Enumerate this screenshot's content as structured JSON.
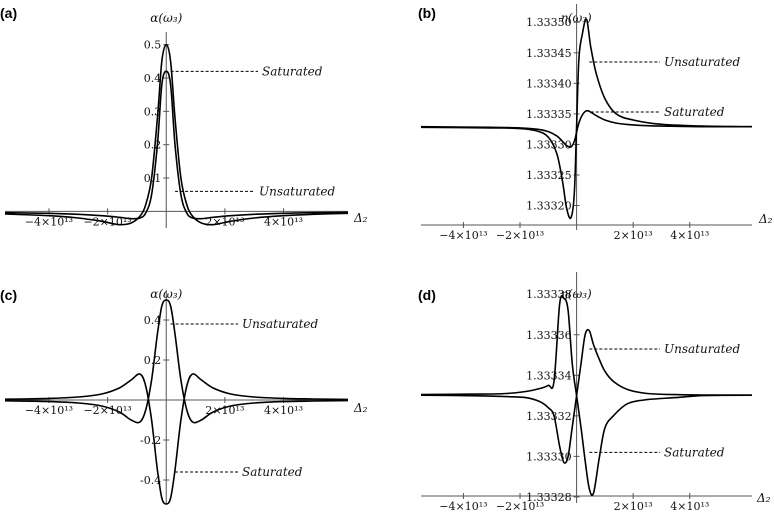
{
  "chart_data": [
    {
      "panel": "(a)",
      "type": "line",
      "ylabel": "α(ω₃)",
      "xlabel": "Δ₂",
      "xlim": [
        -55000000000000,
        62000000000000
      ],
      "ylim": [
        -0.05,
        0.52
      ],
      "yticks": [
        0.1,
        0.2,
        0.3,
        0.4,
        0.5
      ],
      "xticks": [
        -40000000000000,
        -20000000000000,
        20000000000000,
        40000000000000
      ],
      "xtick_labels": [
        "−4×10¹³",
        "−2×10¹³",
        "2×10¹³",
        "4×10¹³"
      ],
      "series": [
        {
          "x": [
            -55000000000000.0,
            -40000000000000.0,
            -30000000000000.0,
            -22000000000000.0,
            -16000000000000.0,
            -12000000000000.0,
            -9000000000000.0,
            -7000000000000.0,
            -5000000000000.0,
            -3000000000000.0,
            -1500000000000.0,
            0,
            1500000000000.0,
            3000000000000.0,
            5000000000000.0,
            7000000000000.0,
            9000000000000.0,
            12000000000000.0,
            16000000000000.0,
            22000000000000.0,
            30000000000000.0,
            40000000000000.0,
            50000000000000.0,
            62000000000000.0
          ],
          "y": [
            -0.004,
            -0.006,
            -0.009,
            -0.013,
            -0.018,
            -0.022,
            -0.02,
            -0.005,
            0.05,
            0.2,
            0.38,
            0.42,
            0.38,
            0.2,
            0.05,
            -0.005,
            -0.02,
            -0.022,
            -0.018,
            -0.013,
            -0.009,
            -0.006,
            -0.004,
            -0.003
          ]
        },
        {
          "x": [
            -55000000000000.0,
            -40000000000000.0,
            -30000000000000.0,
            -22000000000000.0,
            -16000000000000.0,
            -12000000000000.0,
            -9000000000000.0,
            -7000000000000.0,
            -5000000000000.0,
            -3000000000000.0,
            -1500000000000.0,
            0,
            1500000000000.0,
            3000000000000.0,
            5000000000000.0,
            7000000000000.0,
            9000000000000.0,
            12000000000000.0,
            16000000000000.0,
            22000000000000.0,
            30000000000000.0,
            40000000000000.0,
            50000000000000.0,
            62000000000000.0
          ],
          "y": [
            -0.008,
            -0.013,
            -0.02,
            -0.03,
            -0.04,
            -0.035,
            -0.015,
            0.02,
            0.1,
            0.28,
            0.45,
            0.5,
            0.45,
            0.28,
            0.1,
            0.02,
            -0.015,
            -0.035,
            -0.04,
            -0.03,
            -0.02,
            -0.013,
            -0.009,
            -0.006
          ]
        }
      ],
      "annotations": [
        {
          "text": "Saturated",
          "x": 1500000000000.0,
          "y": 0.42
        },
        {
          "text": "Unsaturated",
          "x": 3000000000000.0,
          "y": 0.06
        }
      ]
    },
    {
      "panel": "(b)",
      "type": "line",
      "ylabel": "η(ω₃)",
      "xlabel": "Δ₂",
      "xlim": [
        -55000000000000,
        62000000000000
      ],
      "ylim": [
        1.33316,
        1.33352
      ],
      "yticks": [
        1.3332,
        1.33325,
        1.3333,
        1.33335,
        1.3334,
        1.33345,
        1.3335
      ],
      "ytick_labels": [
        "1.33320",
        "1.33325",
        "1.33330",
        "1.33335",
        "1.33340",
        "1.33345",
        "1.33350"
      ],
      "xticks": [
        -40000000000000,
        -20000000000000,
        20000000000000,
        40000000000000
      ],
      "xtick_labels": [
        "−4×10¹³",
        "−2×10¹³",
        "2×10¹³",
        "4×10¹³"
      ],
      "series": [
        {
          "x": [
            -55000000000000.0,
            -30000000000000.0,
            -20000000000000.0,
            -14000000000000.0,
            -10000000000000.0,
            -7000000000000.0,
            -5000000000000.0,
            -3500000000000.0,
            -2000000000000.0,
            -800000000000.0,
            0,
            800000000000.0,
            2000000000000.0,
            3500000000000.0,
            5000000000000.0,
            7000000000000.0,
            10000000000000.0,
            14000000000000.0,
            20000000000000.0,
            30000000000000.0,
            45000000000000.0,
            62000000000000.0
          ],
          "y": [
            1.333328,
            1.333327,
            1.333326,
            1.333322,
            1.333312,
            1.333285,
            1.33324,
            1.333195,
            1.33318,
            1.33322,
            1.33333,
            1.33344,
            1.33348,
            1.333505,
            1.33346,
            1.333415,
            1.333375,
            1.33335,
            1.33334,
            1.333333,
            1.33333,
            1.333329
          ]
        },
        {
          "x": [
            -55000000000000.0,
            -30000000000000.0,
            -20000000000000.0,
            -14000000000000.0,
            -10000000000000.0,
            -7000000000000.0,
            -5000000000000.0,
            -3500000000000.0,
            -2000000000000.0,
            -800000000000.0,
            0,
            800000000000.0,
            2000000000000.0,
            3500000000000.0,
            5000000000000.0,
            7000000000000.0,
            10000000000000.0,
            14000000000000.0,
            20000000000000.0,
            30000000000000.0,
            45000000000000.0,
            62000000000000.0
          ],
          "y": [
            1.333329,
            1.333328,
            1.333327,
            1.333325,
            1.333321,
            1.333314,
            1.333305,
            1.333298,
            1.333296,
            1.333305,
            1.33332,
            1.333335,
            1.333348,
            1.333355,
            1.333353,
            1.333347,
            1.33334,
            1.333335,
            1.333332,
            1.33333,
            1.333329,
            1.333329
          ]
        }
      ],
      "annotations": [
        {
          "text": "Unsaturated",
          "x": 4500000000000.0,
          "y": 1.333435
        },
        {
          "text": "Saturated",
          "x": 5000000000000.0,
          "y": 1.333353
        }
      ]
    },
    {
      "panel": "(c)",
      "type": "line",
      "ylabel": "α(ω₃)",
      "xlabel": "Δ₂",
      "xlim": [
        -55000000000000,
        62000000000000
      ],
      "ylim": [
        -0.52,
        0.52
      ],
      "yticks": [
        -0.4,
        -0.2,
        0.2,
        0.4
      ],
      "xticks": [
        -40000000000000,
        -20000000000000,
        20000000000000,
        40000000000000
      ],
      "xtick_labels": [
        "−4×10¹³",
        "−2×10¹³",
        "2×10¹³",
        "4×10¹³"
      ],
      "series": [
        {
          "x": [
            -55000000000000.0,
            -40000000000000.0,
            -30000000000000.0,
            -22000000000000.0,
            -16000000000000.0,
            -12000000000000.0,
            -9000000000000.0,
            -7000000000000.0,
            -5000000000000.0,
            -3000000000000.0,
            -1500000000000.0,
            0,
            1500000000000.0,
            3000000000000.0,
            5000000000000.0,
            7000000000000.0,
            9000000000000.0,
            12000000000000.0,
            16000000000000.0,
            22000000000000.0,
            30000000000000.0,
            40000000000000.0,
            50000000000000.0,
            62000000000000.0
          ],
          "y": [
            -0.004,
            -0.008,
            -0.015,
            -0.03,
            -0.06,
            -0.1,
            -0.11,
            -0.05,
            0.1,
            0.33,
            0.47,
            0.5,
            0.47,
            0.33,
            0.1,
            -0.05,
            -0.11,
            -0.1,
            -0.06,
            -0.03,
            -0.015,
            -0.008,
            -0.005,
            -0.003
          ]
        },
        {
          "x": [
            -55000000000000.0,
            -40000000000000.0,
            -30000000000000.0,
            -22000000000000.0,
            -16000000000000.0,
            -12000000000000.0,
            -9000000000000.0,
            -7000000000000.0,
            -5000000000000.0,
            -3000000000000.0,
            -1500000000000.0,
            0,
            1500000000000.0,
            3000000000000.0,
            5000000000000.0,
            7000000000000.0,
            9000000000000.0,
            12000000000000.0,
            16000000000000.0,
            22000000000000.0,
            30000000000000.0,
            40000000000000.0,
            50000000000000.0,
            62000000000000.0
          ],
          "y": [
            0.004,
            0.008,
            0.015,
            0.03,
            0.06,
            0.1,
            0.13,
            0.07,
            -0.1,
            -0.35,
            -0.49,
            -0.52,
            -0.49,
            -0.35,
            -0.1,
            0.07,
            0.13,
            0.1,
            0.06,
            0.03,
            0.015,
            0.008,
            0.005,
            0.003
          ]
        }
      ],
      "annotations": [
        {
          "text": "Unsaturated",
          "x": 1500000000000.0,
          "y": 0.38
        },
        {
          "text": "Saturated",
          "x": 3000000000000.0,
          "y": -0.36
        }
      ]
    },
    {
      "panel": "(d)",
      "type": "line",
      "ylabel": "η(ω₃)",
      "xlabel": "Δ₂",
      "xlim": [
        -55000000000000,
        62000000000000
      ],
      "ylim": [
        1.333277,
        1.333388
      ],
      "yticks": [
        1.33328,
        1.3333,
        1.33332,
        1.33334,
        1.33336,
        1.33338
      ],
      "ytick_labels": [
        "1.33328",
        "1.33330",
        "1.33332",
        "1.33334",
        "1.33336",
        "1.33338"
      ],
      "xticks": [
        -40000000000000,
        -20000000000000,
        20000000000000,
        40000000000000
      ],
      "xtick_labels": [
        "−4×10¹³",
        "−2×10¹³",
        "2×10¹³",
        "4×10¹³"
      ],
      "series": [
        {
          "x": [
            -55000000000000.0,
            -35000000000000.0,
            -25000000000000.0,
            -18000000000000.0,
            -13000000000000.0,
            -10000000000000.0,
            -8000000000000.0,
            -6000000000000.0,
            -4500000000000.0,
            -3000000000000.0,
            -1500000000000.0,
            0,
            1500000000000.0,
            3000000000000.0,
            4500000000000.0,
            6000000000000.0,
            8000000000000.0,
            10000000000000.0,
            13000000000000.0,
            18000000000000.0,
            25000000000000.0,
            35000000000000.0,
            45000000000000.0,
            62000000000000.0
          ],
          "y": [
            1.3333305,
            1.3333307,
            1.333331,
            1.333332,
            1.3333335,
            1.333335,
            1.333337,
            1.333375,
            1.333378,
            1.333372,
            1.333345,
            1.33333,
            1.333315,
            1.333298,
            1.333284,
            1.333282,
            1.333299,
            1.333314,
            1.33332,
            1.333326,
            1.333328,
            1.333329,
            1.33333,
            1.3333302
          ]
        },
        {
          "x": [
            -55000000000000.0,
            -35000000000000.0,
            -25000000000000.0,
            -18000000000000.0,
            -13000000000000.0,
            -10000000000000.0,
            -8000000000000.0,
            -6000000000000.0,
            -4500000000000.0,
            -3000000000000.0,
            -1500000000000.0,
            0,
            1500000000000.0,
            3000000000000.0,
            4500000000000.0,
            6000000000000.0,
            8000000000000.0,
            10000000000000.0,
            13000000000000.0,
            18000000000000.0,
            25000000000000.0,
            35000000000000.0,
            45000000000000.0,
            62000000000000.0
          ],
          "y": [
            1.3333302,
            1.3333299,
            1.3333295,
            1.333329,
            1.333327,
            1.333324,
            1.33332,
            1.333305,
            1.333297,
            1.3333,
            1.333315,
            1.33333,
            1.333345,
            1.33336,
            1.333362,
            1.333355,
            1.333348,
            1.333342,
            1.333337,
            1.333333,
            1.333331,
            1.3333305,
            1.3333303,
            1.3333302
          ]
        }
      ],
      "annotations": [
        {
          "text": "Unsaturated",
          "x": 4500000000000.0,
          "y": 1.333353
        },
        {
          "text": "Saturated",
          "x": 4500000000000.0,
          "y": 1.333302
        }
      ]
    }
  ]
}
